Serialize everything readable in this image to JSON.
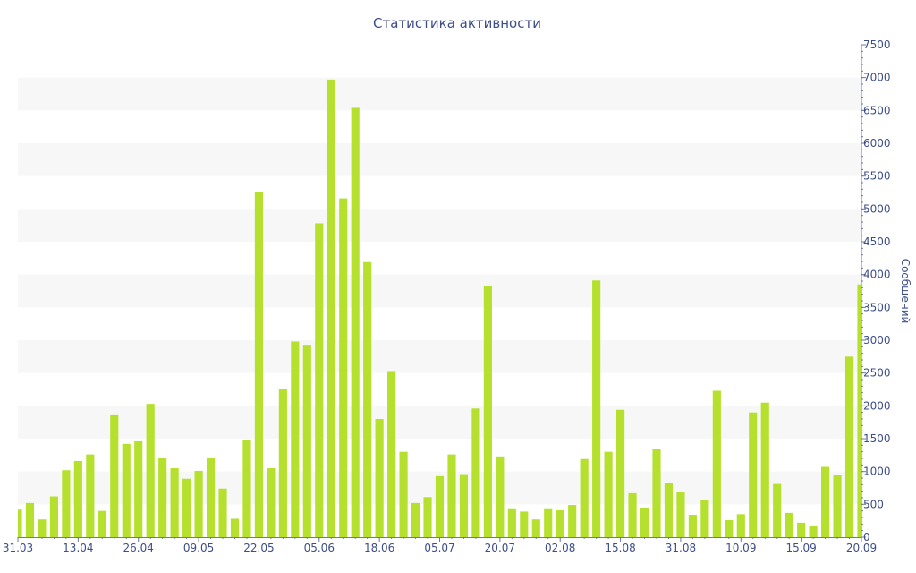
{
  "chart_data": {
    "type": "bar",
    "title": "Статистика активности",
    "xlabel": "",
    "ylabel": "Сообщений",
    "ylim": [
      0,
      7500
    ],
    "yticks": [
      0,
      500,
      1000,
      1500,
      2000,
      2500,
      3000,
      3500,
      4000,
      4500,
      5000,
      5500,
      6000,
      6500,
      7000,
      7500
    ],
    "y_axis_side": "right",
    "grid": "alternating horizontal bands",
    "legend": "none",
    "bar_color": "#b5e12e",
    "band_color": "#f7f7f7",
    "text_color": "#3d4e8a",
    "xtick_labels": [
      {
        "index": 0,
        "label": "31.03"
      },
      {
        "index": 5,
        "label": "13.04"
      },
      {
        "index": 10,
        "label": "26.04"
      },
      {
        "index": 15,
        "label": "09.05"
      },
      {
        "index": 20,
        "label": "22.05"
      },
      {
        "index": 25,
        "label": "05.06"
      },
      {
        "index": 30,
        "label": "18.06"
      },
      {
        "index": 35,
        "label": "05.07"
      },
      {
        "index": 40,
        "label": "20.07"
      },
      {
        "index": 45,
        "label": "02.08"
      },
      {
        "index": 50,
        "label": "15.08"
      },
      {
        "index": 55,
        "label": "31.08"
      },
      {
        "index": 60,
        "label": "10.09"
      },
      {
        "index": 65,
        "label": "15.09"
      },
      {
        "index": 70,
        "label": "20.09"
      }
    ],
    "values": [
      420,
      520,
      270,
      620,
      1020,
      1160,
      1260,
      400,
      1870,
      1420,
      1460,
      2030,
      1200,
      1050,
      890,
      1010,
      1210,
      740,
      280,
      1480,
      5260,
      1050,
      2250,
      2980,
      2930,
      4780,
      6970,
      5160,
      6540,
      4190,
      1800,
      2530,
      1300,
      520,
      610,
      930,
      1260,
      960,
      1960,
      3830,
      1230,
      440,
      390,
      270,
      440,
      410,
      490,
      1190,
      3910,
      1300,
      1940,
      670,
      450,
      1340,
      830,
      690,
      340,
      560,
      2230,
      260,
      350,
      1900,
      2050,
      810,
      370,
      220,
      170,
      1070,
      950,
      2750,
      3850
    ]
  }
}
